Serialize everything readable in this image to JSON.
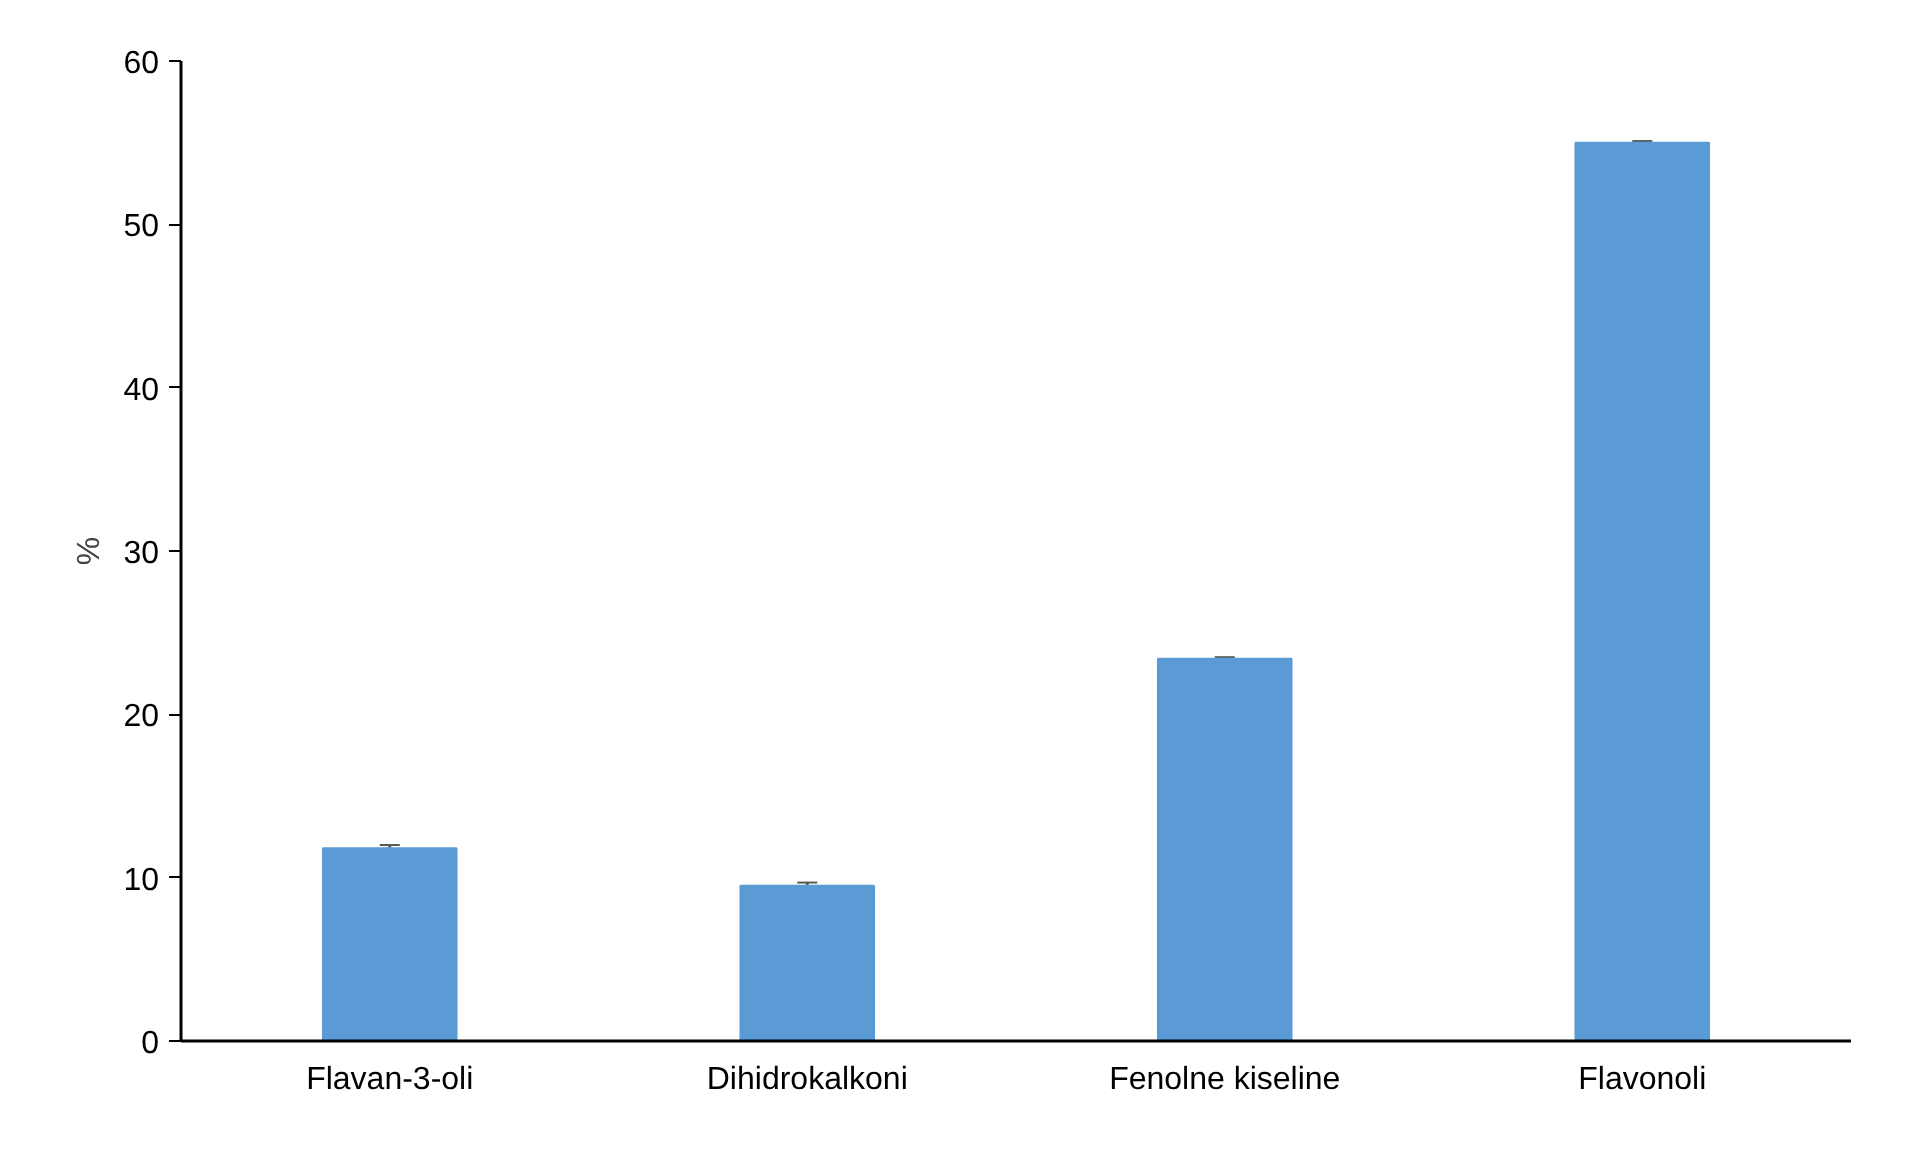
{
  "chart_data": {
    "type": "bar",
    "ylabel": "%",
    "categories": [
      "Flavan-3-oli",
      "Dihidrokalkoni",
      "Fenolne kiseline",
      "Flavonoli"
    ],
    "values": [
      11.8,
      9.5,
      23.4,
      55.0
    ],
    "errors": [
      0.2,
      0.2,
      0.1,
      0.1
    ],
    "color": "#5b9bd5",
    "ylim": [
      0,
      60
    ],
    "yticks": [
      0,
      10,
      20,
      30,
      40,
      50,
      60
    ],
    "grid": false
  }
}
